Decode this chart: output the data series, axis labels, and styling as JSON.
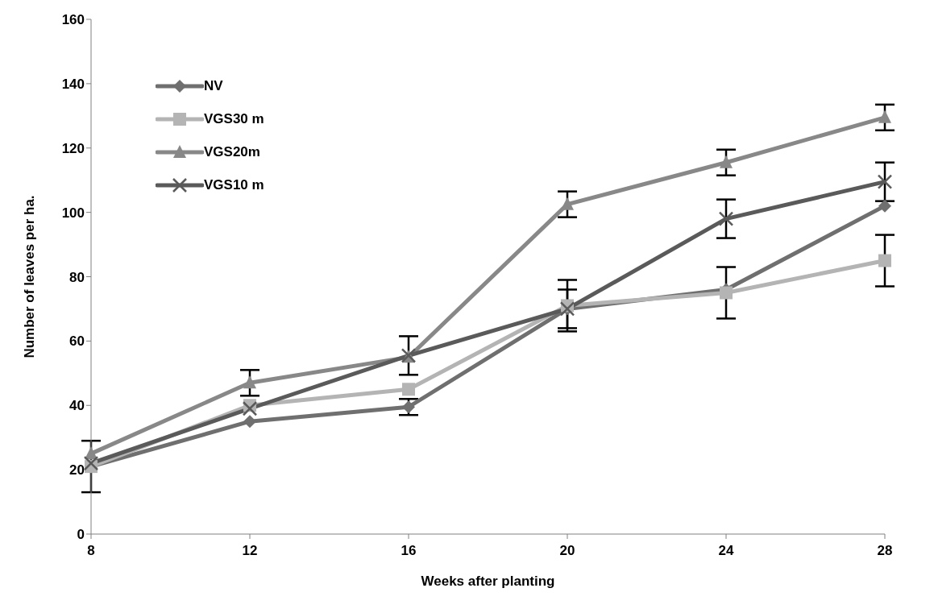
{
  "chart_data": {
    "type": "line",
    "xlabel": "Weeks after planting",
    "ylabel": "Number of leaves per ha.",
    "categories": [
      "8",
      "12",
      "16",
      "20",
      "24",
      "28"
    ],
    "ylim": [
      0,
      160
    ],
    "yticks": [
      0,
      20,
      40,
      60,
      80,
      100,
      120,
      140,
      160
    ],
    "grid": false,
    "legend": "top left",
    "line_style": "solid",
    "series": [
      {
        "name": "NV",
        "color": "#6f6f6f",
        "marker": "diamond",
        "values": [
          21,
          35,
          39.5,
          70,
          76,
          102
        ],
        "errors": [
          null,
          null,
          2.5,
          6,
          null,
          null
        ]
      },
      {
        "name": "VGS30 m",
        "color": "#b4b4b4",
        "marker": "square",
        "values": [
          21,
          40,
          45,
          71,
          75,
          85
        ],
        "errors": [
          8,
          null,
          null,
          8,
          8,
          8
        ]
      },
      {
        "name": "VGS20m",
        "color": "#888888",
        "marker": "triangle",
        "values": [
          25,
          47,
          55,
          102.5,
          115.5,
          129.5
        ],
        "errors": [
          null,
          4,
          null,
          4,
          4,
          4
        ]
      },
      {
        "name": "VGS10 m",
        "color": "#5a5a5a",
        "marker": "cross",
        "values": [
          22,
          39,
          55.5,
          70,
          98,
          109.5
        ],
        "errors": [
          null,
          null,
          6,
          null,
          6,
          6
        ]
      }
    ]
  }
}
